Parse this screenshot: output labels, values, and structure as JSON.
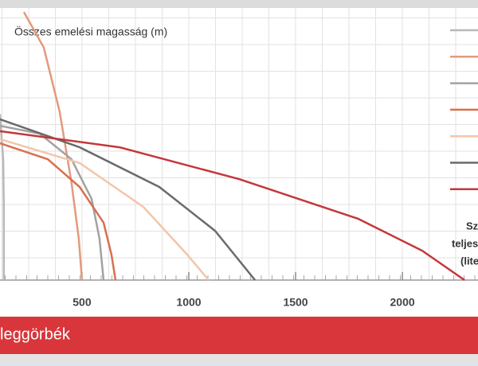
{
  "chart_data": {
    "type": "line",
    "ylabel": "Összes emelési magasság (m)",
    "xlabel_lines": [
      "Sz",
      "teljes",
      "(lite"
    ],
    "banner": "leggörbék",
    "xlim": [
      116,
      2354
    ],
    "ylim": [
      0,
      10
    ],
    "xticks": [
      500,
      1000,
      1500,
      2000
    ],
    "grid": true,
    "series": [
      {
        "color": "#b8b8b8",
        "x": [
          116,
          131,
          134,
          134
        ],
        "values": [
          6.1,
          4.4,
          2.7,
          0
        ]
      },
      {
        "color": "#e39a7c",
        "x": [
          228,
          321,
          395,
          451,
          485,
          500
        ],
        "values": [
          9.85,
          8.54,
          6.2,
          3.57,
          1.52,
          0
        ]
      },
      {
        "color": "#a2a2a2",
        "x": [
          116,
          302,
          451,
          545,
          582,
          601
        ],
        "values": [
          5.67,
          5.38,
          4.44,
          2.98,
          1.52,
          0
        ]
      },
      {
        "color": "#d8704f",
        "x": [
          116,
          340,
          489,
          601,
          638,
          657
        ],
        "values": [
          5.03,
          4.44,
          3.42,
          2.11,
          0.94,
          0
        ]
      },
      {
        "color": "#f2c6aa",
        "x": [
          116,
          489,
          787,
          992,
          1093
        ],
        "values": [
          5.18,
          4.3,
          2.69,
          0.94,
          0
        ]
      },
      {
        "color": "#6a6a6a",
        "x": [
          116,
          489,
          862,
          1123,
          1310
        ],
        "values": [
          5.91,
          4.88,
          3.42,
          1.81,
          0
        ]
      },
      {
        "color": "#c4373a",
        "x": [
          116,
          675,
          1235,
          1794,
          2093,
          2291
        ],
        "values": [
          5.47,
          4.88,
          3.71,
          2.25,
          1.08,
          0
        ]
      }
    ]
  }
}
